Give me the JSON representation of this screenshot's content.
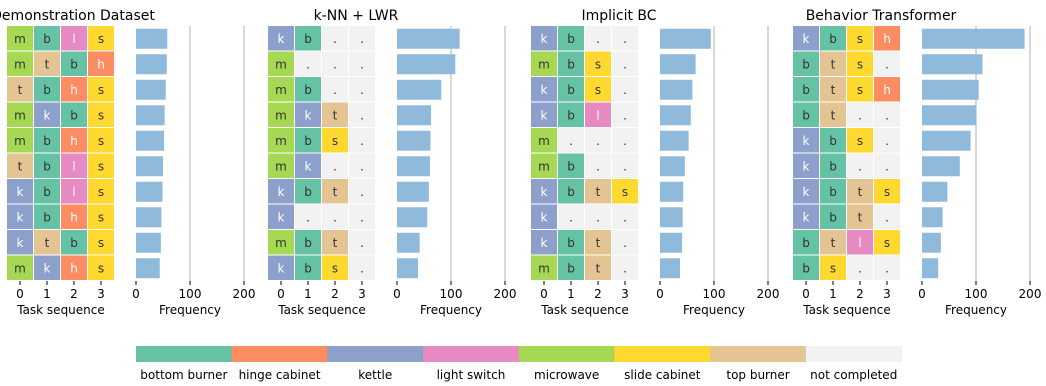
{
  "chart_data": {
    "type": "heatmap",
    "task_axis": {
      "xlabel": "Task sequence",
      "ticks": [
        "0",
        "1",
        "2",
        "3"
      ]
    },
    "freq_axis": {
      "xlabel": "Frequency",
      "xlim": [
        0,
        200
      ],
      "ticks": [
        0,
        100,
        200
      ],
      "gridlines": [
        100,
        200
      ]
    },
    "legend": {
      "placement": "bottom",
      "entries": [
        {
          "key": "b",
          "label": "bottom burner"
        },
        {
          "key": "h",
          "label": "hinge cabinet"
        },
        {
          "key": "k",
          "label": "kettle"
        },
        {
          "key": "l",
          "label": "light switch"
        },
        {
          "key": "m",
          "label": "microwave"
        },
        {
          "key": "s",
          "label": "slide cabinet"
        },
        {
          "key": "t",
          "label": "top burner"
        },
        {
          "key": ".",
          "label": "not completed"
        }
      ]
    },
    "colors": {
      "b": "#66c2a5",
      "h": "#fc8d62",
      "k": "#8da0cb",
      "l": "#e78ac3",
      "m": "#a6d854",
      "s": "#ffd92f",
      "t": "#e5c494",
      ".": "#f2f2f2",
      "bar": "#8fbadb",
      "grid": "#b0b0b0"
    },
    "panels": [
      {
        "title": "Demonstration Dataset",
        "sequences": [
          [
            "m",
            "b",
            "l",
            "s"
          ],
          [
            "m",
            "t",
            "b",
            "h"
          ],
          [
            "t",
            "b",
            "h",
            "s"
          ],
          [
            "m",
            "k",
            "b",
            "s"
          ],
          [
            "m",
            "b",
            "h",
            "s"
          ],
          [
            "t",
            "b",
            "l",
            "s"
          ],
          [
            "k",
            "b",
            "l",
            "s"
          ],
          [
            "k",
            "b",
            "h",
            "s"
          ],
          [
            "k",
            "t",
            "b",
            "s"
          ],
          [
            "m",
            "k",
            "h",
            "s"
          ]
        ],
        "frequencies": [
          58,
          57,
          55,
          53,
          52,
          50,
          49,
          47,
          46,
          44
        ]
      },
      {
        "title": "k-NN + LWR",
        "sequences": [
          [
            "k",
            "b",
            ".",
            "."
          ],
          [
            "m",
            ".",
            ".",
            "."
          ],
          [
            "m",
            "b",
            ".",
            "."
          ],
          [
            "m",
            "k",
            "t",
            "."
          ],
          [
            "m",
            "b",
            "s",
            "."
          ],
          [
            "m",
            "k",
            ".",
            "."
          ],
          [
            "k",
            "b",
            "t",
            "."
          ],
          [
            "k",
            ".",
            ".",
            "."
          ],
          [
            "m",
            "b",
            "t",
            "."
          ],
          [
            "k",
            "b",
            "s",
            "."
          ]
        ],
        "frequencies": [
          116,
          108,
          82,
          63,
          62,
          61,
          59,
          56,
          42,
          39
        ]
      },
      {
        "title": "Implicit BC",
        "sequences": [
          [
            "k",
            "b",
            ".",
            "."
          ],
          [
            "m",
            "b",
            "s",
            "."
          ],
          [
            "k",
            "b",
            "s",
            "."
          ],
          [
            "k",
            "b",
            "l",
            "."
          ],
          [
            "m",
            ".",
            ".",
            "."
          ],
          [
            "m",
            "b",
            ".",
            "."
          ],
          [
            "k",
            "b",
            "t",
            "s"
          ],
          [
            "k",
            ".",
            ".",
            "."
          ],
          [
            "k",
            "b",
            "t",
            "."
          ],
          [
            "m",
            "b",
            "t",
            "."
          ]
        ],
        "frequencies": [
          94,
          66,
          60,
          57,
          53,
          46,
          43,
          42,
          41,
          37
        ]
      },
      {
        "title": "Behavior Transformer",
        "sequences": [
          [
            "k",
            "b",
            "s",
            "h"
          ],
          [
            "b",
            "t",
            "s",
            "."
          ],
          [
            "b",
            "t",
            "s",
            "h"
          ],
          [
            "b",
            "t",
            ".",
            "."
          ],
          [
            "k",
            "b",
            "s",
            "."
          ],
          [
            "k",
            "b",
            ".",
            "."
          ],
          [
            "k",
            "b",
            "t",
            "s"
          ],
          [
            "k",
            "b",
            "t",
            "."
          ],
          [
            "b",
            "t",
            "l",
            "s"
          ],
          [
            "b",
            "s",
            ".",
            "."
          ]
        ],
        "frequencies": [
          190,
          112,
          105,
          101,
          90,
          70,
          47,
          38,
          35,
          30
        ]
      }
    ]
  }
}
